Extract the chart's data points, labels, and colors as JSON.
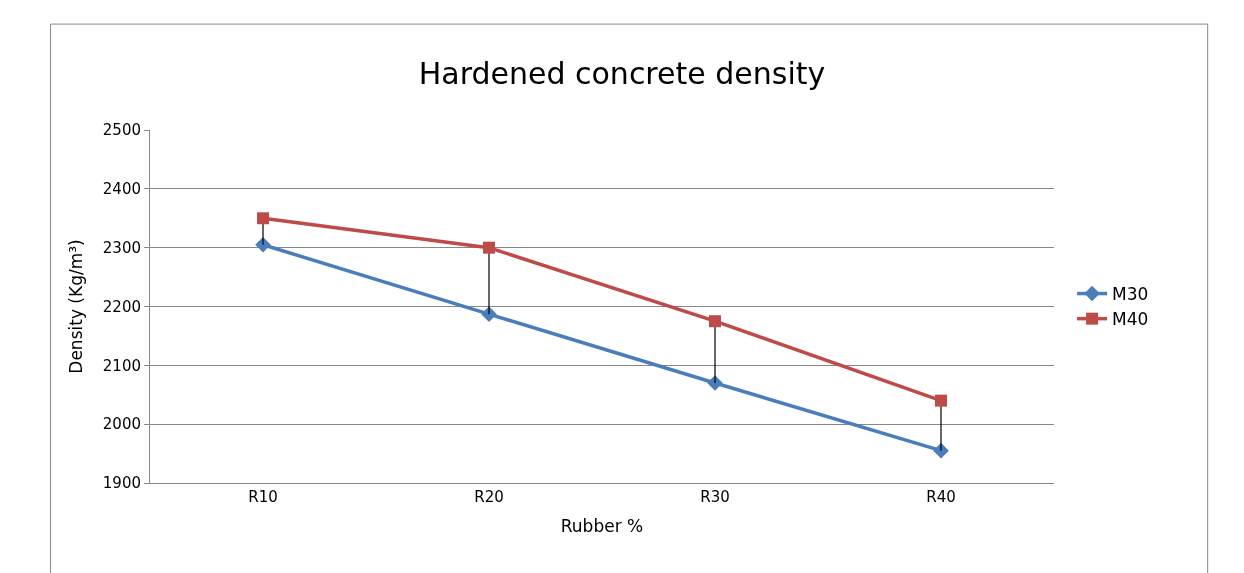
{
  "chart_data": {
    "type": "line",
    "title": "Hardened concrete density",
    "xlabel": "Rubber %",
    "ylabel": "Density (Kg/m³)",
    "categories": [
      "R10",
      "R20",
      "R30",
      "R40"
    ],
    "series": [
      {
        "name": "M30",
        "color": "#4a7ebb",
        "marker": "diamond",
        "values": [
          2305,
          2187,
          2070,
          1955
        ]
      },
      {
        "name": "M40",
        "color": "#be4b48",
        "marker": "square",
        "values": [
          2350,
          2300,
          2175,
          2040
        ],
        "errors": [
          [
            2305,
            2350
          ],
          [
            2187,
            2300
          ],
          [
            2070,
            2175
          ],
          [
            1955,
            2040
          ]
        ]
      }
    ],
    "ylim": [
      1900,
      2500
    ],
    "yticks": [
      1900,
      2000,
      2100,
      2200,
      2300,
      2400,
      2500
    ],
    "grid": "y",
    "legend": "right",
    "line_style": "solid"
  }
}
